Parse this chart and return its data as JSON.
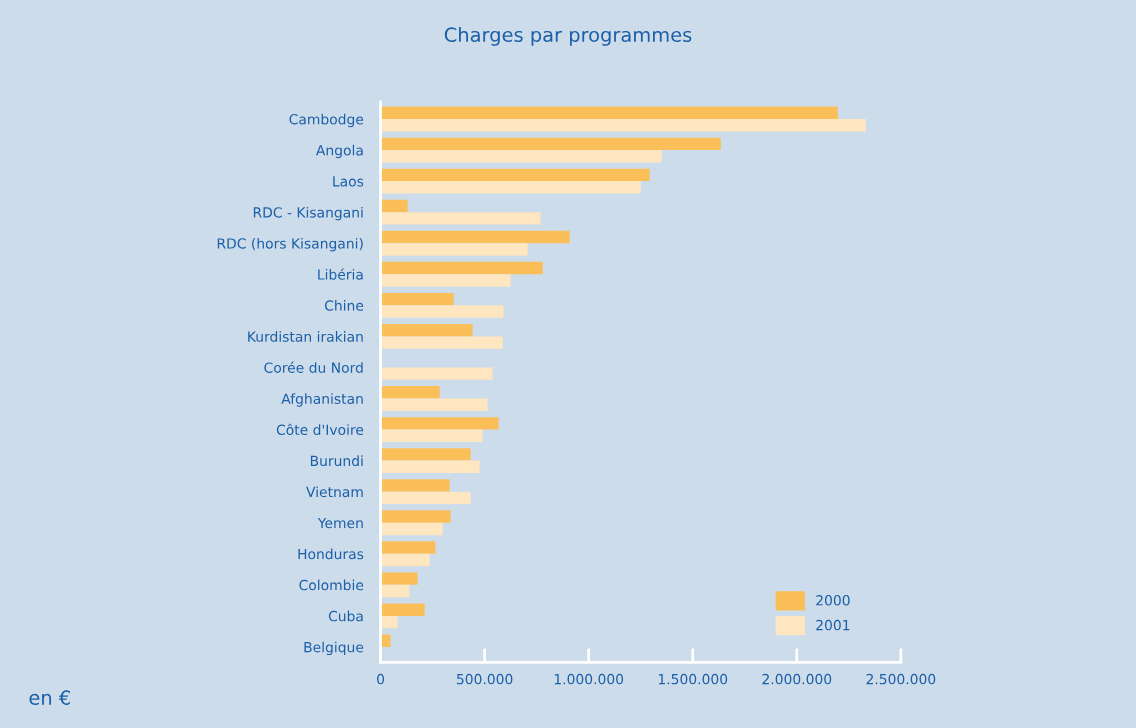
{
  "chart_data": {
    "type": "bar",
    "orientation": "horizontal",
    "title": "Charges par programmes",
    "categories": [
      "Cambodge",
      "Angola",
      "Laos",
      "RDC - Kisangani",
      "RDC (hors Kisangani)",
      "Libéria",
      "Chine",
      "Kurdistan irakian",
      "Corée du Nord",
      "Afghanistan",
      "Côte d'Ivoire",
      "Burundi",
      "Vietnam",
      "Yemen",
      "Honduras",
      "Colombie",
      "Cuba",
      "Belgique"
    ],
    "series": [
      {
        "name": "2000",
        "color": "#fbbf5a",
        "values": [
          2197000,
          1635000,
          1293000,
          130000,
          909000,
          779000,
          351000,
          442000,
          null,
          284000,
          567000,
          433000,
          332000,
          337000,
          264000,
          178000,
          212000,
          48000
        ]
      },
      {
        "name": "2001",
        "color": "#fde6c0",
        "values": [
          2332000,
          1351000,
          1250000,
          769000,
          707000,
          625000,
          591000,
          587000,
          538000,
          514000,
          490000,
          476000,
          433000,
          298000,
          236000,
          139000,
          82000,
          null
        ]
      }
    ],
    "xlim": [
      0,
      2500000
    ],
    "xticks": [
      0,
      {
        "value": 500000,
        "label": "500.000"
      },
      {
        "value": 1000000,
        "label": "1.000.000"
      },
      {
        "value": 1500000,
        "label": "1.500.000"
      },
      {
        "value": 2000000,
        "label": "2.000.000"
      },
      {
        "value": 2500000,
        "label": "2.500.000"
      }
    ],
    "annotations": [
      "en €"
    ],
    "legend": "bottom right",
    "grid": false
  }
}
